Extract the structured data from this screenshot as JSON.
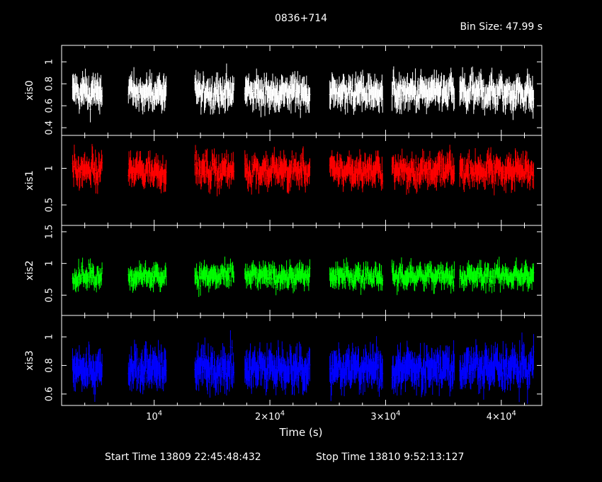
{
  "header": {
    "title": "0836+714",
    "bin_size": "Bin Size: 47.99 s"
  },
  "footer": {
    "start_time": "Start Time 13809 22:45:48:432",
    "stop_time": "Stop Time 13810  9:52:13:127"
  },
  "chart_data": {
    "type": "line",
    "title": "0836+714",
    "xlabel": "Time (s)",
    "xlim": [
      2000,
      43500
    ],
    "x_ticks": [
      {
        "value": 10000,
        "label": "10^4"
      },
      {
        "value": 20000,
        "label": "2×10^4"
      },
      {
        "value": 30000,
        "label": "3×10^4"
      },
      {
        "value": 40000,
        "label": "4×10^4"
      }
    ],
    "segments": [
      [
        2950,
        5520
      ],
      [
        7770,
        11070
      ],
      [
        13520,
        16900
      ],
      [
        17840,
        23460
      ],
      [
        25180,
        29780
      ],
      [
        30560,
        35950
      ],
      [
        36410,
        42800
      ]
    ],
    "series": [
      {
        "name": "xis0",
        "ylabel": "xis0",
        "color": "#ffffff",
        "ylim": [
          0.33,
          1.15
        ],
        "mean": 0.72,
        "noise": 0.13,
        "y_ticks": [
          0.4,
          0.6,
          0.8,
          1
        ],
        "y_tick_labels": [
          "0.4",
          "0.6",
          "0.8",
          "1"
        ]
      },
      {
        "name": "xis1",
        "ylabel": "xis1",
        "color": "#ff0000",
        "ylim": [
          0.22,
          1.45
        ],
        "mean": 0.97,
        "noise": 0.18,
        "y_ticks": [
          0.5,
          1
        ],
        "y_tick_labels": [
          "0.5",
          "1"
        ]
      },
      {
        "name": "xis2",
        "ylabel": "xis2",
        "color": "#00ff00",
        "ylim": [
          0.18,
          1.6
        ],
        "mean": 0.8,
        "noise": 0.16,
        "y_ticks": [
          0.5,
          1,
          1.5
        ],
        "y_tick_labels": [
          "0.5",
          "1",
          "1.5"
        ]
      },
      {
        "name": "xis3",
        "ylabel": "xis3",
        "color": "#0000ff",
        "ylim": [
          0.52,
          1.15
        ],
        "mean": 0.78,
        "noise": 0.12,
        "y_ticks": [
          0.6,
          0.8,
          1
        ],
        "y_tick_labels": [
          "0.6",
          "0.8",
          "1"
        ]
      }
    ]
  }
}
